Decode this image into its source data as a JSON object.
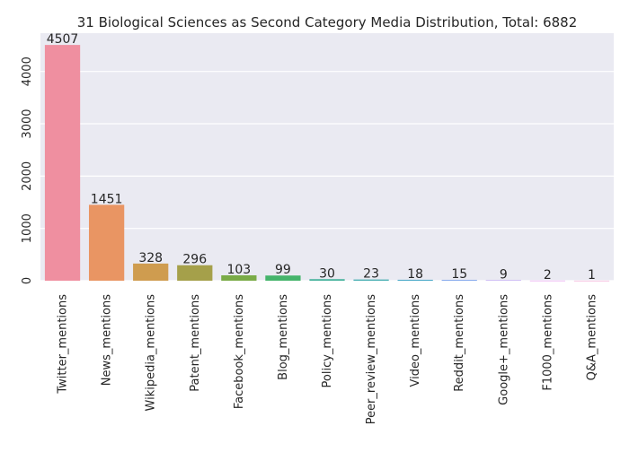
{
  "chart_data": {
    "type": "bar",
    "title": "31 Biological Sciences as Second Category Media Distribution, Total: 6882",
    "xlabel": "",
    "ylabel": "",
    "categories": [
      "Twitter_mentions",
      "News_mentions",
      "Wikipedia_mentions",
      "Patent_mentions",
      "Facebook_mentions",
      "Blog_mentions",
      "Policy_mentions",
      "Peer_review_mentions",
      "Video_mentions",
      "Reddit_mentions",
      "Google+_mentions",
      "F1000_mentions",
      "Q&A_mentions"
    ],
    "values": [
      4507,
      1451,
      328,
      296,
      103,
      99,
      30,
      23,
      18,
      15,
      9,
      2,
      1
    ],
    "data_labels": [
      "4507",
      "1451",
      "328",
      "296",
      "103",
      "99",
      "30",
      "23",
      "18",
      "15",
      "9",
      "2",
      "1"
    ],
    "yticks": [
      0,
      1000,
      2000,
      3000,
      4000
    ],
    "ytick_labels": [
      "0",
      "1000",
      "2000",
      "3000",
      "4000"
    ],
    "ylim": [
      0,
      4732
    ],
    "grid": true,
    "colors": {
      "background": "#eaeaf2",
      "gridline": "#ffffff",
      "bars": [
        "#ef8fa0",
        "#e99563",
        "#cf9c4f",
        "#a5a04a",
        "#7aab47",
        "#45b46b",
        "#44b29b",
        "#46adb2",
        "#48a8c8",
        "#78a1ea",
        "#b394f2",
        "#e382ea",
        "#ee8bc6"
      ]
    }
  }
}
